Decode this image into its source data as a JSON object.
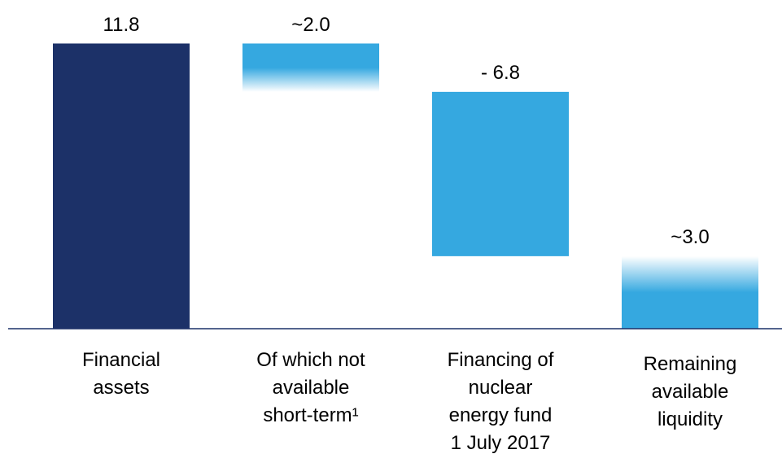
{
  "chart_data": {
    "type": "waterfall",
    "categories": [
      "Financial\nassets",
      "Of which not\navailable\nshort-term¹",
      "Financing of\nnuclear\nenergy fund\n1 July 2017",
      "Remaining\navailable\nliquidity"
    ],
    "values": [
      11.8,
      -2.0,
      -6.8,
      3.0
    ],
    "value_labels": [
      "11.8",
      "~2.0",
      "- 6.8",
      "~3.0"
    ],
    "measure": [
      "absolute",
      "relative",
      "relative",
      "total"
    ],
    "colors": [
      "#1c3168",
      "#35a8e0",
      "#35a8e0",
      "#35a8e0"
    ],
    "fade": [
      null,
      "bottom",
      null,
      "top"
    ],
    "axis_color": "#1c3168",
    "ylim": [
      0,
      13.6
    ]
  }
}
